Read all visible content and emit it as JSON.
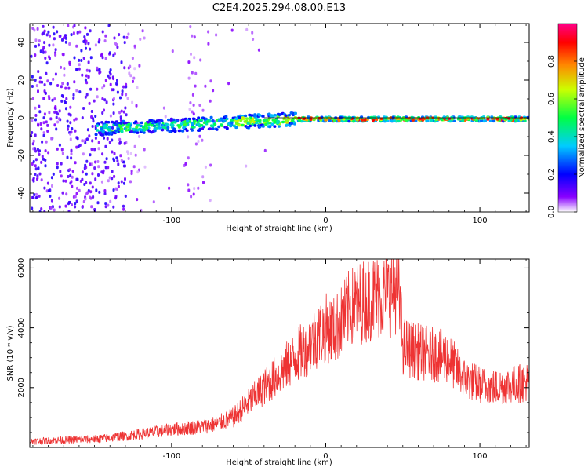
{
  "title": "C2E4.2025.294.08.00.E13",
  "chart_data": [
    {
      "type": "heatmap",
      "xlabel": "Height of straight line (km)",
      "ylabel": "Frequency (Hz)",
      "xlim": [
        -192,
        132
      ],
      "ylim": [
        -50,
        50
      ],
      "x_ticks": [
        -100,
        0,
        100
      ],
      "x_tick_labels": [
        "-100",
        "0",
        "100"
      ],
      "y_ticks": [
        -40,
        -20,
        0,
        20,
        40
      ],
      "y_tick_labels": [
        "-40",
        "-20",
        "0",
        "20",
        "40"
      ],
      "signal_line_frequency": 0,
      "colorbar": {
        "label": "Normalized spectral amplitude",
        "range": [
          0,
          1
        ],
        "ticks": [
          0.0,
          0.2,
          0.4,
          0.6,
          0.8
        ],
        "tick_labels": [
          "0.0",
          "0.2",
          "0.4",
          "0.6",
          "0.8"
        ]
      }
    },
    {
      "type": "line",
      "xlabel": "Height of straight line (km)",
      "ylabel": "SNR (10 * v/v)",
      "xlim": [
        -192,
        132
      ],
      "ylim": [
        0,
        6300
      ],
      "x_ticks": [
        -100,
        0,
        100
      ],
      "x_tick_labels": [
        "-100",
        "0",
        "100"
      ],
      "y_ticks": [
        2000,
        4000,
        6000
      ],
      "y_tick_labels": [
        "2000",
        "4000",
        "6000"
      ],
      "color": "#ee3333",
      "series": [
        {
          "name": "SNR",
          "x": [
            -192,
            -170,
            -150,
            -140,
            -120,
            -100,
            -90,
            -80,
            -70,
            -60,
            -50,
            -40,
            -30,
            -20,
            -10,
            0,
            5,
            10,
            15,
            20,
            30,
            40,
            45,
            47,
            50,
            55,
            60,
            70,
            80,
            85,
            90,
            100,
            110,
            120,
            132
          ],
          "y": [
            200,
            250,
            280,
            320,
            450,
            600,
            650,
            700,
            800,
            1000,
            1500,
            2000,
            2500,
            3000,
            3500,
            4000,
            3900,
            4200,
            4600,
            4800,
            5000,
            5100,
            5300,
            5400,
            3400,
            3300,
            3200,
            3100,
            3000,
            2600,
            2300,
            2100,
            2000,
            2100,
            2200
          ]
        }
      ]
    }
  ]
}
